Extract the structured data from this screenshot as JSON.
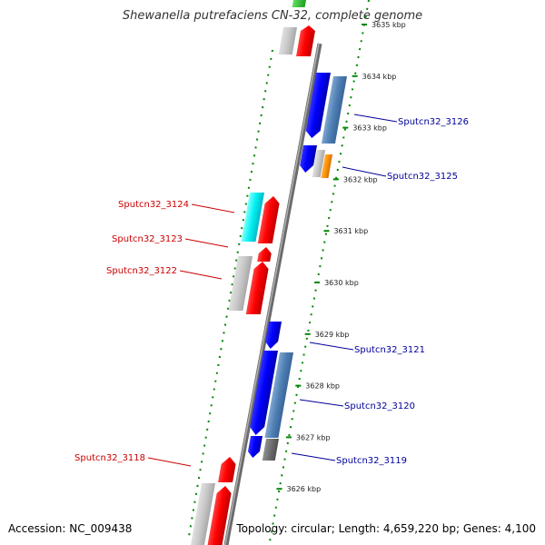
{
  "title": "Shewanella putrefaciens CN-32, complete genome",
  "footer": {
    "accession": "Accession: NC_009438",
    "summary": "Topology: circular; Length: 4,659,220 bp; Genes: 4,100"
  },
  "colors": {
    "forward_label": "#cc0000",
    "reverse_label": "#000099",
    "backbone": "#888888",
    "tick": "#008800"
  },
  "ticks": [
    {
      "label": "3635 kbp",
      "kbp": 3635
    },
    {
      "label": "3634 kbp",
      "kbp": 3634
    },
    {
      "label": "3633 kbp",
      "kbp": 3633
    },
    {
      "label": "3632 kbp",
      "kbp": 3632
    },
    {
      "label": "3631 kbp",
      "kbp": 3631
    },
    {
      "label": "3630 kbp",
      "kbp": 3630
    },
    {
      "label": "3629 kbp",
      "kbp": 3629
    },
    {
      "label": "3628 kbp",
      "kbp": 3628
    },
    {
      "label": "3627 kbp",
      "kbp": 3627
    },
    {
      "label": "3626 kbp",
      "kbp": 3626
    }
  ],
  "labels": [
    {
      "text": "Sputcn32_3126",
      "strand": "reverse"
    },
    {
      "text": "Sputcn32_3125",
      "strand": "reverse"
    },
    {
      "text": "Sputcn32_3124",
      "strand": "forward"
    },
    {
      "text": "Sputcn32_3123",
      "strand": "forward"
    },
    {
      "text": "Sputcn32_3122",
      "strand": "forward"
    },
    {
      "text": "Sputcn32_3121",
      "strand": "reverse"
    },
    {
      "text": "Sputcn32_3120",
      "strand": "reverse"
    },
    {
      "text": "Sputcn32_3119",
      "strand": "reverse"
    },
    {
      "text": "Sputcn32_3118",
      "strand": "forward"
    }
  ]
}
